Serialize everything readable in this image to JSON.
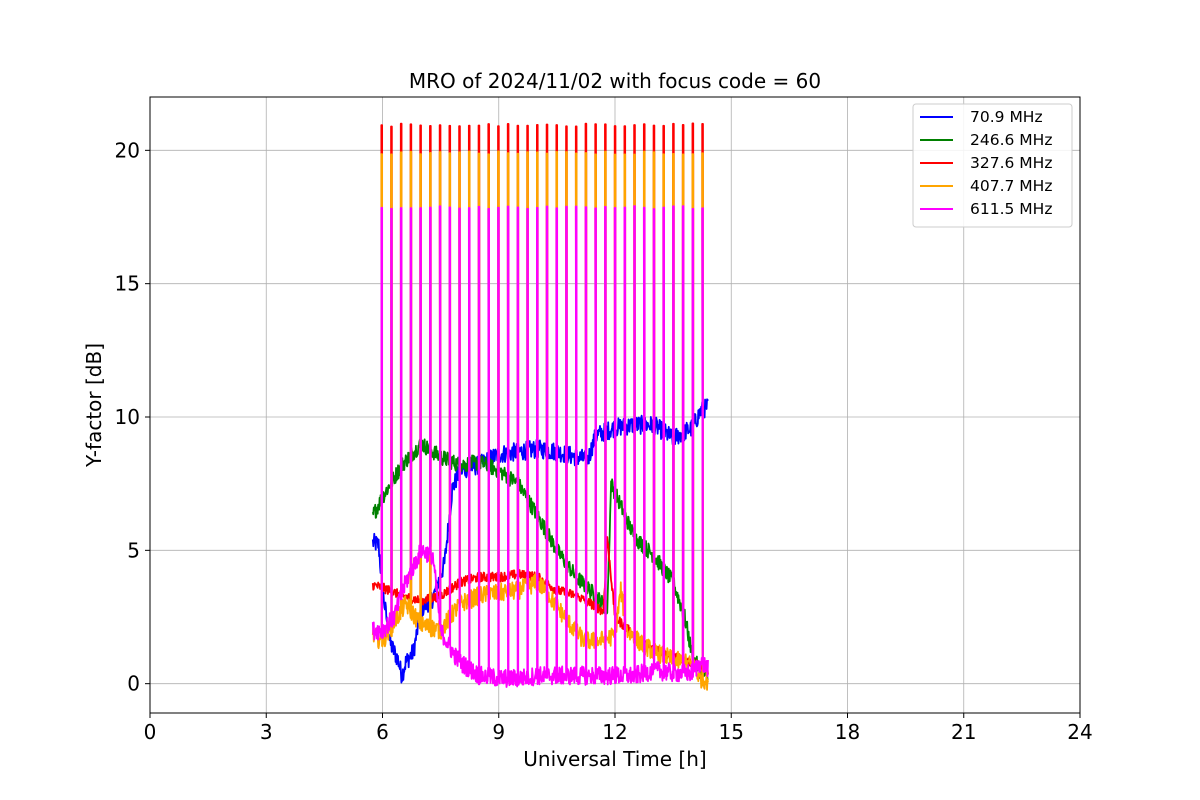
{
  "chart_data": {
    "type": "line",
    "title": "MRO of 2024/11/02 with focus code = 60",
    "xlabel": "Universal Time [h]",
    "ylabel": "Y-factor [dB]",
    "xlim": [
      0,
      24
    ],
    "ylim": [
      -1.1,
      22
    ],
    "xticks": [
      0,
      3,
      6,
      9,
      12,
      15,
      18,
      21,
      24
    ],
    "yticks": [
      0,
      5,
      10,
      15,
      20
    ],
    "grid": true,
    "legend_position": "top-right",
    "series": [
      {
        "name": "70.9 MHz",
        "color": "#0000ff",
        "x": [
          5.75,
          5.9,
          6.0,
          6.2,
          6.4,
          6.5,
          6.6,
          6.8,
          7.0,
          7.3,
          7.6,
          7.8,
          8.0,
          8.5,
          9.0,
          9.5,
          10.0,
          10.5,
          11.0,
          11.3,
          11.5,
          12.0,
          12.5,
          13.0,
          13.5,
          14.0,
          14.2,
          14.4
        ],
        "values": [
          5.3,
          5.2,
          3.5,
          1.5,
          0.9,
          0.3,
          0.8,
          1.2,
          2.8,
          3.2,
          4.5,
          7.3,
          8.0,
          8.2,
          8.6,
          8.7,
          8.8,
          8.7,
          8.5,
          8.4,
          9.3,
          9.6,
          9.7,
          9.7,
          9.2,
          9.6,
          10.2,
          10.4
        ]
      },
      {
        "name": "246.6 MHz",
        "color": "#008000",
        "x": [
          5.75,
          6.0,
          6.5,
          7.0,
          7.5,
          8.0,
          8.5,
          9.0,
          9.5,
          10.0,
          10.5,
          11.0,
          11.5,
          11.8,
          11.9,
          12.2,
          12.5,
          13.0,
          13.5,
          13.8,
          14.0,
          14.2,
          14.4
        ],
        "values": [
          6.3,
          7.0,
          8.2,
          9.0,
          8.5,
          8.2,
          8.3,
          8.0,
          7.5,
          6.3,
          5.0,
          4.0,
          3.3,
          2.8,
          7.5,
          6.5,
          5.5,
          4.8,
          3.8,
          2.5,
          1.0,
          0.5,
          0.2
        ]
      },
      {
        "name": "327.6 MHz",
        "color": "#ff0000",
        "x": [
          5.75,
          6.0,
          6.5,
          7.0,
          7.5,
          8.0,
          8.5,
          9.0,
          9.5,
          10.0,
          10.5,
          11.0,
          11.5,
          11.7,
          11.8,
          12.0,
          12.5,
          13.0,
          13.5,
          14.0,
          14.4
        ],
        "values": [
          3.7,
          3.6,
          3.3,
          3.1,
          3.3,
          3.8,
          4.0,
          4.0,
          4.1,
          4.0,
          3.5,
          3.3,
          2.9,
          2.7,
          5.5,
          2.5,
          1.8,
          1.3,
          1.0,
          0.8,
          0.5
        ],
        "spikes_to": 20.95
      },
      {
        "name": "407.7 MHz",
        "color": "#ffa500",
        "x": [
          5.75,
          6.0,
          6.3,
          6.6,
          7.0,
          7.5,
          8.0,
          8.5,
          9.0,
          9.5,
          10.0,
          10.3,
          10.8,
          11.2,
          11.6,
          12.0,
          12.15,
          12.3,
          12.6,
          13.0,
          13.5,
          14.0,
          14.2,
          14.4
        ],
        "values": [
          1.8,
          1.6,
          2.3,
          3.0,
          2.2,
          2.0,
          3.0,
          3.3,
          3.4,
          3.5,
          3.8,
          3.3,
          2.3,
          1.6,
          1.6,
          1.8,
          3.5,
          2.0,
          1.6,
          1.2,
          0.9,
          0.7,
          0.2,
          0.1
        ],
        "spikes_to": 19.9
      },
      {
        "name": "611.5 MHz",
        "color": "#ff00ff",
        "x": [
          5.75,
          6.0,
          6.3,
          6.6,
          7.0,
          7.3,
          7.5,
          7.8,
          8.0,
          8.5,
          9.0,
          9.5,
          10.0,
          10.5,
          11.0,
          11.5,
          12.0,
          12.5,
          13.0,
          13.5,
          14.0,
          14.2,
          14.4
        ],
        "values": [
          2.0,
          2.0,
          2.5,
          3.8,
          5.0,
          4.8,
          2.0,
          1.2,
          0.8,
          0.3,
          0.2,
          0.2,
          0.3,
          0.3,
          0.3,
          0.3,
          0.3,
          0.3,
          0.5,
          0.4,
          0.4,
          0.8,
          0.6
        ],
        "spikes_to": 17.85
      }
    ],
    "spikes": {
      "start": 5.97,
      "end": 14.25,
      "count": 34
    }
  }
}
